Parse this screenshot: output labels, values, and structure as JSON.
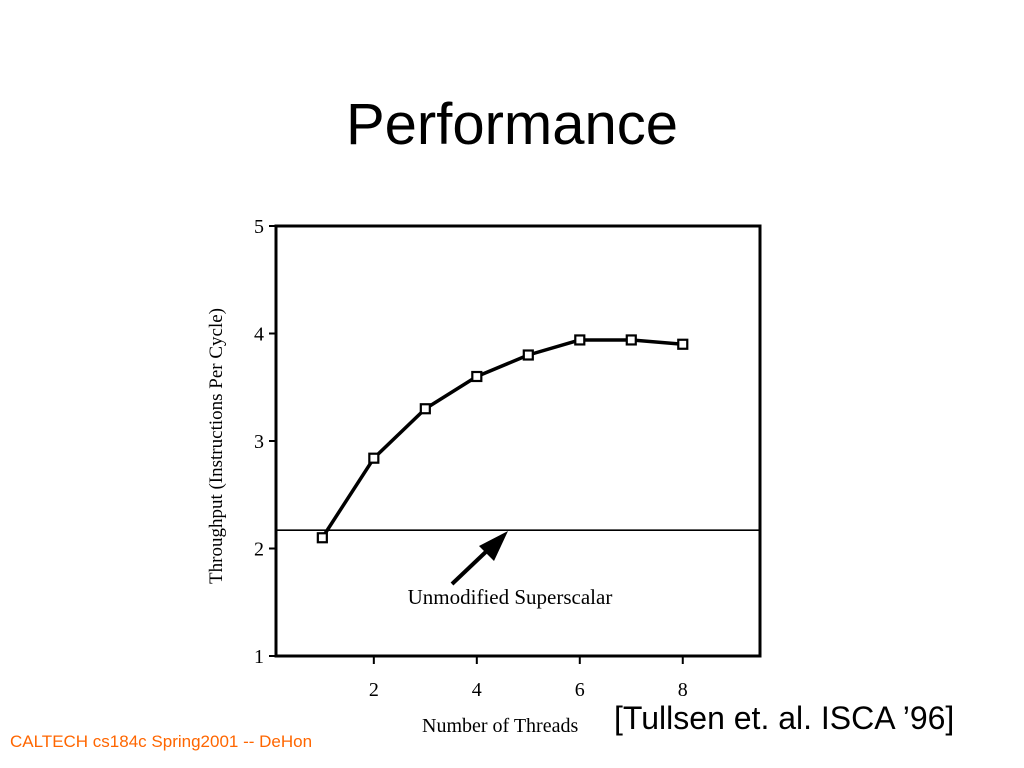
{
  "slide": {
    "title": "Performance",
    "citation": "[Tullsen et. al. ISCA ’96]",
    "footer": "CALTECH cs184c Spring2001 -- DeHon"
  },
  "colors": {
    "text": "#000000",
    "footer": "#ff6600",
    "background": "#ffffff"
  },
  "chart_data": {
    "type": "line",
    "title": "",
    "xlabel": "Number of Threads",
    "ylabel": "Throughput (Instructions Per Cycle)",
    "xlim": [
      0.1,
      9.5
    ],
    "ylim": [
      1,
      5
    ],
    "x_ticks": [
      2,
      4,
      6,
      8
    ],
    "y_ticks": [
      1,
      2,
      3,
      4,
      5
    ],
    "grid": false,
    "series": [
      {
        "marker": "open-square",
        "x": [
          1,
          2,
          3,
          4,
          5,
          6,
          7,
          8
        ],
        "values": [
          2.1,
          2.84,
          3.3,
          3.6,
          3.8,
          3.94,
          3.94,
          3.9
        ]
      }
    ],
    "reference_line": {
      "y": 2.17,
      "label": "Unmodified Superscalar"
    }
  }
}
